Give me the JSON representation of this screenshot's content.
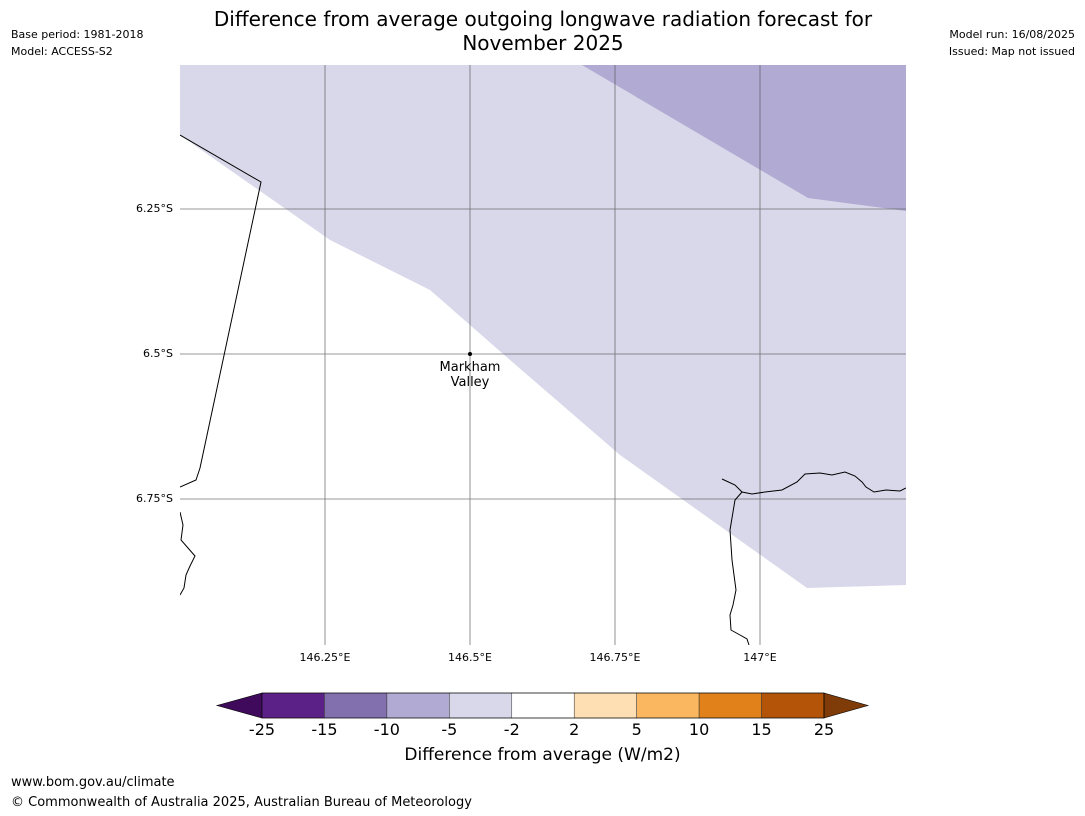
{
  "title_line1": "Difference from average outgoing longwave radiation forecast for",
  "title_line2": "November 2025",
  "meta_left": {
    "base_period": "Base period: 1981-2018",
    "model": "Model: ACCESS-S2"
  },
  "meta_right": {
    "model_run": "Model run: 16/08/2025",
    "issued": "Issued: Map not issued"
  },
  "map": {
    "lat_labels": [
      "6.25°S",
      "6.5°S",
      "6.75°S"
    ],
    "lon_labels": [
      "146.25°E",
      "146.5°E",
      "146.75°E",
      "147°E"
    ],
    "place": {
      "name_line1": "Markham",
      "name_line2": "Valley"
    },
    "colors": {
      "light_purple": "#d8d8ea",
      "mid_purple": "#b1aad2"
    }
  },
  "colorbar": {
    "label": "Difference from average (W/m2)",
    "ticks": [
      "-25",
      "-15",
      "-10",
      "-5",
      "-2",
      "2",
      "5",
      "10",
      "15",
      "25"
    ],
    "colors": [
      "#3f0a5c",
      "#5c2186",
      "#8270ae",
      "#b1aad2",
      "#d8d8ea",
      "#ffffff",
      "#fddfb3",
      "#fbb660",
      "#e1811a",
      "#b45408",
      "#7f3b08"
    ]
  },
  "footer": {
    "website": "www.bom.gov.au/climate",
    "copyright": "© Commonwealth of Australia 2025, Australian Bureau of Meteorology"
  }
}
